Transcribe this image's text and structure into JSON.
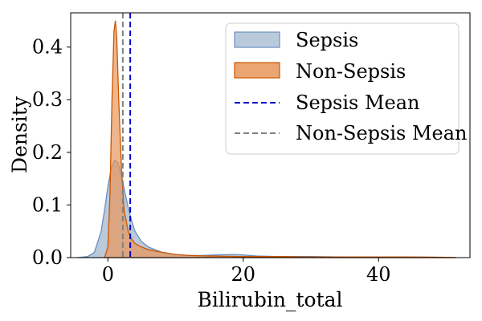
{
  "chart_data": {
    "type": "area",
    "xlabel": "Bilirubin_total",
    "ylabel": "Density",
    "xlim": [
      -5.5,
      53.5
    ],
    "ylim": [
      0,
      0.465
    ],
    "xticks": [
      0,
      20,
      40
    ],
    "yticks": [
      0.0,
      0.1,
      0.2,
      0.3,
      0.4
    ],
    "xtick_labels": [
      "0",
      "20",
      "40"
    ],
    "ytick_labels": [
      "0.0",
      "0.1",
      "0.2",
      "0.3",
      "0.4"
    ],
    "grid": false,
    "legend_position": "top-right",
    "series": [
      {
        "name": "Sepsis",
        "fill": "#9db4cc",
        "stroke": "#6a8fbf",
        "x": [
          -4.5,
          -3,
          -2,
          -1,
          -0.5,
          0,
          0.5,
          1,
          1.5,
          2,
          2.5,
          3,
          3.5,
          4,
          5,
          6,
          7,
          8,
          10,
          12,
          14,
          16,
          18,
          19,
          20,
          22,
          25,
          30,
          35,
          40,
          45,
          50,
          51.5
        ],
        "y": [
          0.0,
          0.002,
          0.01,
          0.05,
          0.09,
          0.135,
          0.17,
          0.185,
          0.18,
          0.155,
          0.125,
          0.095,
          0.07,
          0.05,
          0.03,
          0.02,
          0.015,
          0.01,
          0.006,
          0.004,
          0.004,
          0.005,
          0.006,
          0.006,
          0.005,
          0.003,
          0.002,
          0.002,
          0.001,
          0.001,
          0.001,
          0.0005,
          0.0
        ]
      },
      {
        "name": "Non-Sepsis",
        "fill": "#e8955a",
        "stroke": "#cc5500",
        "x": [
          -0.5,
          0,
          0.3,
          0.6,
          0.9,
          1.1,
          1.3,
          1.6,
          2,
          2.4,
          3,
          3.5,
          4,
          5,
          6,
          8,
          10,
          12,
          15,
          20,
          25,
          30,
          35,
          40,
          45,
          50,
          51.5
        ],
        "y": [
          0.0,
          0.02,
          0.12,
          0.3,
          0.43,
          0.45,
          0.42,
          0.3,
          0.17,
          0.09,
          0.05,
          0.035,
          0.027,
          0.02,
          0.015,
          0.01,
          0.006,
          0.004,
          0.003,
          0.002,
          0.002,
          0.001,
          0.001,
          0.001,
          0.001,
          0.0005,
          0.0
        ]
      }
    ],
    "mean_lines": [
      {
        "name": "Sepsis Mean",
        "x": 3.3,
        "color": "#0000cc"
      },
      {
        "name": "Non-Sepsis Mean",
        "x": 2.2,
        "color": "#808080"
      }
    ]
  }
}
